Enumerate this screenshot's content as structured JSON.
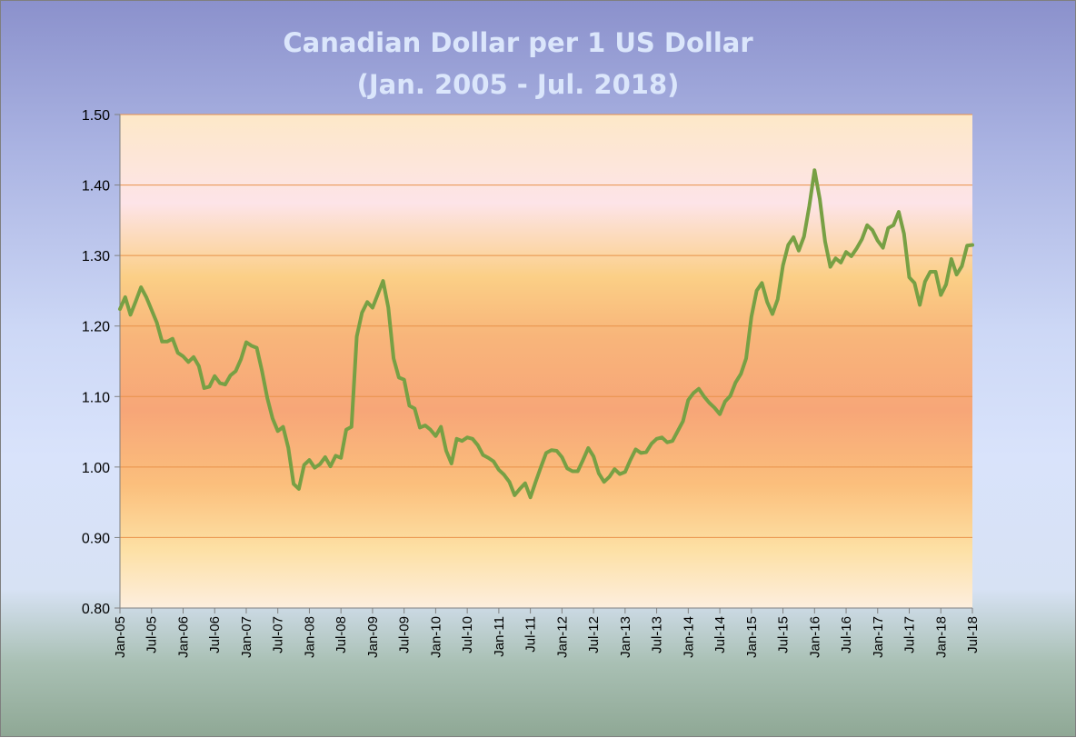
{
  "chart_data": {
    "type": "line",
    "title": [
      "Canadian Dollar per 1 US Dollar",
      "(Jan. 2005 - Jul. 2018)"
    ],
    "xlabel": "",
    "ylabel": "",
    "ylim": [
      0.8,
      1.5
    ],
    "y_ticks": [
      "0.80",
      "0.90",
      "1.00",
      "1.10",
      "1.20",
      "1.30",
      "1.40",
      "1.50"
    ],
    "x_ticks": [
      "Jan-05",
      "Jul-05",
      "Jan-06",
      "Jul-06",
      "Jan-07",
      "Jul-07",
      "Jan-08",
      "Jul-08",
      "Jan-09",
      "Jul-09",
      "Jan-10",
      "Jul-10",
      "Jan-11",
      "Jul-11",
      "Jan-12",
      "Jul-12",
      "Jan-13",
      "Jul-13",
      "Jan-14",
      "Jul-14",
      "Jan-15",
      "Jul-15",
      "Jan-16",
      "Jul-16",
      "Jan-17",
      "Jul-17",
      "Jan-18",
      "Jul-18"
    ],
    "grid": "horizontal",
    "legend": "none",
    "line_color": "#77a044",
    "series": [
      {
        "values": [
          1.224,
          1.241,
          1.216,
          1.235,
          1.255,
          1.241,
          1.223,
          1.205,
          1.178,
          1.178,
          1.182,
          1.162,
          1.157,
          1.149,
          1.156,
          1.143,
          1.112,
          1.114,
          1.129,
          1.119,
          1.117,
          1.13,
          1.136,
          1.153,
          1.177,
          1.172,
          1.169,
          1.136,
          1.098,
          1.069,
          1.051,
          1.057,
          1.027,
          0.976,
          0.969,
          1.003,
          1.01,
          0.999,
          1.004,
          1.014,
          1.001,
          1.016,
          1.013,
          1.053,
          1.057,
          1.185,
          1.219,
          1.234,
          1.226,
          1.245,
          1.264,
          1.226,
          1.154,
          1.127,
          1.124,
          1.087,
          1.083,
          1.056,
          1.059,
          1.053,
          1.044,
          1.057,
          1.023,
          1.005,
          1.04,
          1.037,
          1.042,
          1.04,
          1.031,
          1.017,
          1.013,
          1.008,
          0.996,
          0.989,
          0.979,
          0.96,
          0.969,
          0.977,
          0.957,
          0.979,
          1.0,
          1.02,
          1.024,
          1.023,
          1.014,
          0.998,
          0.994,
          0.994,
          1.01,
          1.027,
          1.015,
          0.991,
          0.979,
          0.986,
          0.997,
          0.99,
          0.993,
          1.01,
          1.025,
          1.02,
          1.021,
          1.033,
          1.04,
          1.042,
          1.035,
          1.037,
          1.051,
          1.065,
          1.095,
          1.105,
          1.111,
          1.1,
          1.091,
          1.084,
          1.075,
          1.093,
          1.101,
          1.12,
          1.132,
          1.154,
          1.213,
          1.25,
          1.261,
          1.234,
          1.217,
          1.238,
          1.286,
          1.315,
          1.326,
          1.307,
          1.327,
          1.37,
          1.421,
          1.38,
          1.32,
          1.284,
          1.296,
          1.29,
          1.305,
          1.299,
          1.31,
          1.323,
          1.343,
          1.336,
          1.321,
          1.311,
          1.339,
          1.343,
          1.362,
          1.331,
          1.269,
          1.261,
          1.23,
          1.263,
          1.277,
          1.277,
          1.244,
          1.259,
          1.295,
          1.273,
          1.285,
          1.314,
          1.315
        ]
      }
    ]
  }
}
